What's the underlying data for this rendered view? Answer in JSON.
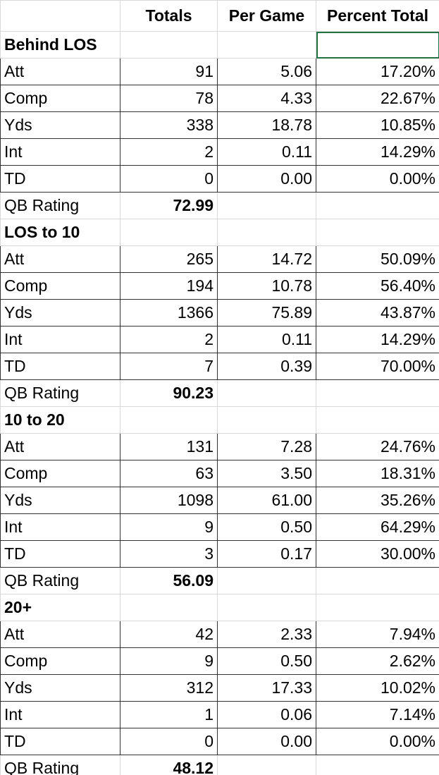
{
  "header": {
    "columns": [
      "Totals",
      "Per Game",
      "Percent Total"
    ]
  },
  "groups": [
    {
      "title": "Behind LOS",
      "rows": [
        {
          "label": "Att",
          "cells": [
            "91",
            "5.06",
            "17.20%"
          ]
        },
        {
          "label": "Comp",
          "cells": [
            "78",
            "4.33",
            "22.67%"
          ]
        },
        {
          "label": "Yds",
          "cells": [
            "338",
            "18.78",
            "10.85%"
          ]
        },
        {
          "label": "Int",
          "cells": [
            "2",
            "0.11",
            "14.29%"
          ]
        },
        {
          "label": "TD",
          "cells": [
            "0",
            "0.00",
            "0.00%"
          ]
        }
      ],
      "rating_label": "QB Rating",
      "rating": "72.99"
    },
    {
      "title": "LOS to 10",
      "rows": [
        {
          "label": "Att",
          "cells": [
            "265",
            "14.72",
            "50.09%"
          ]
        },
        {
          "label": "Comp",
          "cells": [
            "194",
            "10.78",
            "56.40%"
          ]
        },
        {
          "label": "Yds",
          "cells": [
            "1366",
            "75.89",
            "43.87%"
          ]
        },
        {
          "label": "Int",
          "cells": [
            "2",
            "0.11",
            "14.29%"
          ]
        },
        {
          "label": "TD",
          "cells": [
            "7",
            "0.39",
            "70.00%"
          ]
        }
      ],
      "rating_label": "QB Rating",
      "rating": "90.23"
    },
    {
      "title": "10 to 20",
      "rows": [
        {
          "label": "Att",
          "cells": [
            "131",
            "7.28",
            "24.76%"
          ]
        },
        {
          "label": "Comp",
          "cells": [
            "63",
            "3.50",
            "18.31%"
          ]
        },
        {
          "label": "Yds",
          "cells": [
            "1098",
            "61.00",
            "35.26%"
          ]
        },
        {
          "label": "Int",
          "cells": [
            "9",
            "0.50",
            "64.29%"
          ]
        },
        {
          "label": "TD",
          "cells": [
            "3",
            "0.17",
            "30.00%"
          ]
        }
      ],
      "rating_label": "QB Rating",
      "rating": "56.09"
    },
    {
      "title": "20+",
      "rows": [
        {
          "label": "Att",
          "cells": [
            "42",
            "2.33",
            "7.94%"
          ]
        },
        {
          "label": "Comp",
          "cells": [
            "9",
            "0.50",
            "2.62%"
          ]
        },
        {
          "label": "Yds",
          "cells": [
            "312",
            "17.33",
            "10.02%"
          ]
        },
        {
          "label": "Int",
          "cells": [
            "1",
            "0.06",
            "7.14%"
          ]
        },
        {
          "label": "TD",
          "cells": [
            "0",
            "0.00",
            "0.00%"
          ]
        }
      ],
      "rating_label": "QB Rating",
      "rating": "48.12"
    }
  ]
}
